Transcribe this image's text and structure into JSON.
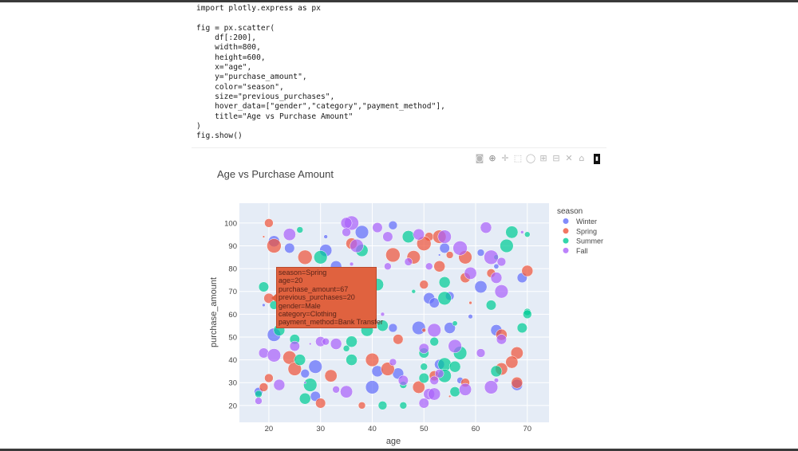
{
  "code": {
    "lines": [
      "import plotly.express as px",
      "",
      "fig = px.scatter(",
      "    df[:200],",
      "    width=800,",
      "    height=600,",
      "    x=\"age\",",
      "    y=\"purchase_amount\",",
      "    color=\"season\",",
      "    size=\"previous_purchases\",",
      "    hover_data=[\"gender\",\"category\",\"payment_method\"],",
      "    title=\"Age vs Purchase Amount\"",
      ")",
      "fig.show()"
    ]
  },
  "modebar": {
    "icons": [
      "camera-icon",
      "zoom-icon",
      "pan-icon",
      "box-select-icon",
      "lasso-icon",
      "zoom-in-icon",
      "zoom-out-icon",
      "autoscale-icon",
      "home-icon",
      "plotly-logo-icon"
    ]
  },
  "tooltip": {
    "lines": [
      "season=Spring",
      "age=20",
      "purchase_amount=67",
      "previous_purchases=20",
      "gender=Male",
      "category=Clothing",
      "payment_method=Bank Transfer"
    ],
    "color": "#EF553B"
  },
  "chart_data": {
    "type": "scatter",
    "title": "Age vs Purchase Amount",
    "xlabel": "age",
    "ylabel": "purchase_amount",
    "size_field": "previous_purchases",
    "xlim": [
      14.3,
      74.2
    ],
    "ylim": [
      12.6,
      108.7
    ],
    "xticks": [
      "20",
      "30",
      "40",
      "50",
      "60",
      "70"
    ],
    "yticks": [
      "20",
      "30",
      "40",
      "50",
      "60",
      "70",
      "80",
      "90",
      "100"
    ],
    "grid": true,
    "plot_bgcolor": "#E5ECF6",
    "legend": {
      "title": "season",
      "placement": "right"
    },
    "series": [
      {
        "name": "Winter",
        "color": "#636EFA",
        "points": [
          [
            21,
            92,
            25
          ],
          [
            24,
            89,
            20
          ],
          [
            31,
            88,
            30
          ],
          [
            31,
            94,
            3
          ],
          [
            38,
            96,
            35
          ],
          [
            44,
            99,
            15
          ],
          [
            33,
            81,
            25
          ],
          [
            19,
            64,
            2
          ],
          [
            54,
            89,
            20
          ],
          [
            53,
            86,
            1
          ],
          [
            61,
            87,
            10
          ],
          [
            64,
            81,
            5
          ],
          [
            69,
            76,
            20
          ],
          [
            61,
            72,
            30
          ],
          [
            51,
            67,
            25
          ],
          [
            52,
            65,
            20
          ],
          [
            55,
            68,
            15
          ],
          [
            21,
            51,
            35
          ],
          [
            29,
            37,
            35
          ],
          [
            27,
            34,
            15
          ],
          [
            40,
            28,
            35
          ],
          [
            18,
            26,
            15
          ],
          [
            29,
            24,
            20
          ],
          [
            41,
            35,
            25
          ],
          [
            45,
            34,
            25
          ],
          [
            44,
            54,
            15
          ],
          [
            49,
            54,
            35
          ],
          [
            55,
            54,
            25
          ],
          [
            59,
            59,
            4
          ],
          [
            53,
            38,
            20
          ],
          [
            57,
            31,
            8
          ],
          [
            64,
            53,
            25
          ],
          [
            68,
            29,
            25
          ]
        ]
      },
      {
        "name": "Spring",
        "color": "#EF553B",
        "points": [
          [
            20,
            100,
            15
          ],
          [
            19,
            94,
            1
          ],
          [
            21,
            90,
            40
          ],
          [
            27,
            85,
            40
          ],
          [
            36,
            91,
            25
          ],
          [
            44,
            86,
            40
          ],
          [
            20,
            67,
            20
          ],
          [
            51,
            94,
            15
          ],
          [
            50,
            91,
            40
          ],
          [
            53,
            94,
            35
          ],
          [
            48,
            85,
            35
          ],
          [
            55,
            86,
            10
          ],
          [
            58,
            85,
            35
          ],
          [
            53,
            81,
            25
          ],
          [
            70,
            79,
            25
          ],
          [
            58,
            76,
            20
          ],
          [
            63,
            78,
            15
          ],
          [
            50,
            73,
            15
          ],
          [
            59,
            65,
            2
          ],
          [
            24,
            41,
            35
          ],
          [
            40,
            40,
            35
          ],
          [
            25,
            36,
            35
          ],
          [
            32,
            33,
            30
          ],
          [
            20,
            32,
            15
          ],
          [
            19,
            28,
            15
          ],
          [
            30,
            21,
            20
          ],
          [
            38,
            20,
            10
          ],
          [
            43,
            36,
            35
          ],
          [
            45,
            49,
            20
          ],
          [
            50,
            53,
            3
          ],
          [
            52,
            33,
            20
          ],
          [
            58,
            30,
            15
          ],
          [
            49,
            28,
            30
          ],
          [
            55,
            24,
            1
          ],
          [
            65,
            51,
            25
          ],
          [
            68,
            43,
            30
          ],
          [
            67,
            39,
            30
          ],
          [
            65,
            36,
            30
          ],
          [
            68,
            30,
            25
          ]
        ]
      },
      {
        "name": "Summer",
        "color": "#00CC96",
        "points": [
          [
            26,
            97,
            8
          ],
          [
            30,
            85,
            35
          ],
          [
            38,
            88,
            30
          ],
          [
            19,
            72,
            20
          ],
          [
            21,
            64,
            15
          ],
          [
            41,
            73,
            30
          ],
          [
            47,
            94,
            30
          ],
          [
            67,
            96,
            30
          ],
          [
            70,
            95,
            6
          ],
          [
            66,
            90,
            35
          ],
          [
            64,
            85,
            5
          ],
          [
            54,
            74,
            25
          ],
          [
            48,
            70,
            3
          ],
          [
            54,
            67,
            35
          ],
          [
            63,
            64,
            20
          ],
          [
            70,
            61,
            10
          ],
          [
            22,
            53,
            25
          ],
          [
            25,
            49,
            20
          ],
          [
            36,
            48,
            25
          ],
          [
            35,
            45,
            8
          ],
          [
            26,
            40,
            25
          ],
          [
            36,
            40,
            25
          ],
          [
            28,
            29,
            35
          ],
          [
            18,
            25,
            10
          ],
          [
            27,
            23,
            25
          ],
          [
            42,
            20,
            15
          ],
          [
            39,
            53,
            30
          ],
          [
            42,
            55,
            25
          ],
          [
            56,
            56,
            5
          ],
          [
            52,
            48,
            15
          ],
          [
            57,
            43,
            35
          ],
          [
            50,
            43,
            20
          ],
          [
            46,
            29,
            10
          ],
          [
            50,
            37,
            10
          ],
          [
            54,
            38,
            35
          ],
          [
            56,
            37,
            25
          ],
          [
            50,
            32,
            20
          ],
          [
            54,
            33,
            35
          ],
          [
            56,
            26,
            20
          ],
          [
            46,
            20,
            10
          ],
          [
            69,
            54,
            20
          ],
          [
            70,
            60,
            15
          ],
          [
            64,
            35,
            25
          ]
        ]
      },
      {
        "name": "Fall",
        "color": "#AB63FA",
        "points": [
          [
            24,
            95,
            30
          ],
          [
            36,
            100,
            40
          ],
          [
            35,
            100,
            25
          ],
          [
            35,
            96,
            15
          ],
          [
            41,
            98,
            20
          ],
          [
            43,
            94,
            20
          ],
          [
            37,
            90,
            35
          ],
          [
            43,
            81,
            10
          ],
          [
            36,
            82,
            3
          ],
          [
            49,
            95,
            25
          ],
          [
            54,
            94,
            35
          ],
          [
            47,
            83,
            12
          ],
          [
            57,
            89,
            40
          ],
          [
            51,
            81,
            10
          ],
          [
            62,
            98,
            25
          ],
          [
            69,
            96,
            2
          ],
          [
            63,
            85,
            40
          ],
          [
            65,
            83,
            15
          ],
          [
            59,
            78,
            30
          ],
          [
            64,
            76,
            25
          ],
          [
            65,
            70,
            35
          ],
          [
            25,
            46,
            20
          ],
          [
            28,
            47,
            1
          ],
          [
            30,
            48,
            20
          ],
          [
            31,
            48,
            10
          ],
          [
            33,
            47,
            25
          ],
          [
            19,
            43,
            20
          ],
          [
            21,
            42,
            35
          ],
          [
            22,
            29,
            25
          ],
          [
            27,
            30,
            1
          ],
          [
            33,
            27,
            10
          ],
          [
            35,
            26,
            30
          ],
          [
            18,
            22,
            10
          ],
          [
            44,
            39,
            10
          ],
          [
            42,
            60,
            3
          ],
          [
            52,
            53,
            35
          ],
          [
            56,
            46,
            35
          ],
          [
            50,
            45,
            20
          ],
          [
            46,
            31,
            20
          ],
          [
            53,
            34,
            15
          ],
          [
            52,
            31,
            15
          ],
          [
            58,
            27,
            30
          ],
          [
            51,
            25,
            25
          ],
          [
            52,
            25,
            30
          ],
          [
            50,
            21,
            20
          ],
          [
            61,
            43,
            15
          ],
          [
            65,
            49,
            20
          ],
          [
            64,
            31,
            4
          ],
          [
            63,
            28,
            35
          ]
        ]
      }
    ]
  }
}
